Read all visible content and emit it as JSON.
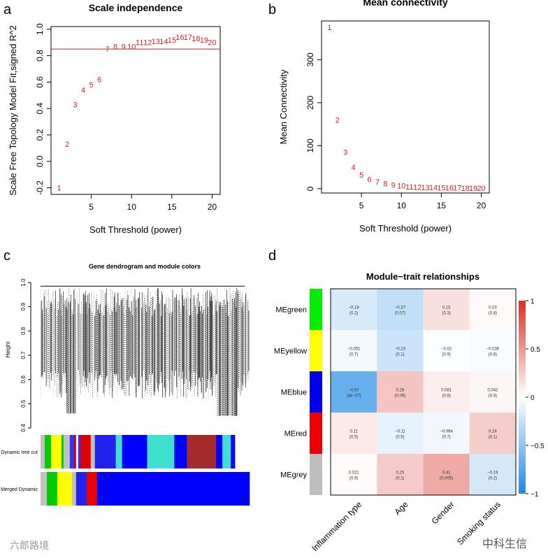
{
  "chart_data": [
    {
      "panel": "a",
      "type": "scatter",
      "title": "Scale independence",
      "xlabel": "Soft Threshold (power)",
      "ylabel": "Scale Free Topology Model Fit,signed R^2",
      "xlim": [
        0,
        21
      ],
      "ylim": [
        -0.25,
        1.02
      ],
      "xticks": [
        "5",
        "10",
        "15",
        "20"
      ],
      "yticks": [
        "-0.2",
        "0.0",
        "0.2",
        "0.4",
        "0.6",
        "0.8",
        "1.0"
      ],
      "x": [
        1,
        2,
        3,
        4,
        5,
        6,
        7,
        8,
        9,
        10,
        11,
        12,
        13,
        14,
        15,
        16,
        17,
        18,
        19,
        20
      ],
      "y": [
        -0.2,
        0.13,
        0.43,
        0.54,
        0.58,
        0.62,
        0.85,
        0.87,
        0.87,
        0.87,
        0.9,
        0.9,
        0.91,
        0.91,
        0.92,
        0.94,
        0.94,
        0.93,
        0.92,
        0.9
      ],
      "hline": 0.85,
      "color": "#cc2222"
    },
    {
      "panel": "b",
      "type": "scatter",
      "title": "Mean connectivity",
      "xlabel": "Soft Threshold (power)",
      "ylabel": "Mean Connectivity",
      "xlim": [
        0,
        21
      ],
      "ylim": [
        -10,
        390
      ],
      "xticks": [
        "5",
        "10",
        "15",
        "20"
      ],
      "yticks": [
        "0",
        "100",
        "200",
        "300"
      ],
      "x": [
        1,
        2,
        3,
        4,
        5,
        6,
        7,
        8,
        9,
        10,
        11,
        12,
        13,
        14,
        15,
        16,
        17,
        18,
        19,
        20
      ],
      "y": [
        375,
        160,
        85,
        50,
        32,
        22,
        16,
        12,
        9,
        7,
        5,
        4,
        3,
        3,
        2,
        2,
        2,
        1,
        1,
        1
      ],
      "color": "#cc2222"
    },
    {
      "panel": "c",
      "type": "dendrogram",
      "title": "Gene dendrogram and module colors",
      "ylabel": "Height",
      "yticks": [
        "0.4",
        "0.5",
        "0.6",
        "0.7",
        "0.8",
        "0.9",
        "1.0"
      ],
      "ylim": [
        0.4,
        1.0
      ],
      "rows": [
        {
          "label": "Dynamic tree cut",
          "segments": [
            [
              "#c0c0c0",
              0.02
            ],
            [
              "#00cc00",
              0.03
            ],
            [
              "#ffff00",
              0.05
            ],
            [
              "#00cc00",
              0.01
            ],
            [
              "#c0c0c0",
              0.03
            ],
            [
              "#3333ff",
              0.02
            ],
            [
              "#cc0000",
              0.01
            ],
            [
              "#ffffff",
              0.01
            ],
            [
              "#3333ff",
              0.01
            ],
            [
              "#dd0000",
              0.05
            ],
            [
              "#c0c0c0",
              0.02
            ],
            [
              "#2222ee",
              0.1
            ],
            [
              "#40e0d0",
              0.03
            ],
            [
              "#0000ff",
              0.12
            ],
            [
              "#40e0d0",
              0.13
            ],
            [
              "#0000ff",
              0.06
            ],
            [
              "#a52a2a",
              0.14
            ],
            [
              "#0000ff",
              0.03
            ],
            [
              "#40e0d0",
              0.04
            ],
            [
              "#0000ff",
              0.02
            ]
          ]
        },
        {
          "label": "Merged Dynamic",
          "segments": [
            [
              "#c0c0c0",
              0.03
            ],
            [
              "#00cc00",
              0.05
            ],
            [
              "#ffff00",
              0.07
            ],
            [
              "#c0c0c0",
              0.02
            ],
            [
              "#2222ee",
              0.05
            ],
            [
              "#ee0000",
              0.05
            ],
            [
              "#0000ff",
              0.73
            ]
          ]
        }
      ]
    },
    {
      "panel": "d",
      "type": "heatmap",
      "title": "Module−trait relationships",
      "rows": [
        "MEgreen",
        "MEyellow",
        "MEblue",
        "MEred",
        "MEgrey"
      ],
      "row_colors": [
        "#00ee00",
        "#ffff00",
        "#0000ee",
        "#ee0000",
        "#bebebe"
      ],
      "columns": [
        "Inflammation type",
        "Age",
        "Gender",
        "Smoking status"
      ],
      "values": [
        [
          -0.18,
          -0.27,
          0.15,
          0.03
        ],
        [
          -0.051,
          -0.23,
          -0.02,
          -0.036
        ],
        [
          -0.67,
          0.28,
          0.081,
          0.042
        ],
        [
          0.11,
          -0.11,
          -0.064,
          0.24
        ],
        [
          0.021,
          0.25,
          0.41,
          -0.19
        ]
      ],
      "labels": [
        [
          "−0.18",
          "−0.27",
          "0.15",
          "0.03"
        ],
        [
          "−0.051",
          "−0.23",
          "−0.02",
          "−0.036"
        ],
        [
          "−0.67",
          "0.28",
          "0.081",
          "0.042"
        ],
        [
          "0.11",
          "−0.11",
          "−0.064",
          "0.24"
        ],
        [
          "0.021",
          "0.25",
          "0.41",
          "−0.19"
        ]
      ],
      "pvalues": [
        [
          "(0.2)",
          "(0.07)",
          "(0.3)",
          "(0.8)"
        ],
        [
          "(0.7)",
          "(0.1)",
          "(0.9)",
          "(0.8)"
        ],
        [
          "(3e−07)",
          "(0.06)",
          "(0.6)",
          "(0.8)"
        ],
        [
          "(0.5)",
          "(0.5)",
          "(0.7)",
          "(0.1)"
        ],
        [
          "(0.9)",
          "(0.1)",
          "(0.005)",
          "(0.2)"
        ]
      ],
      "colorbar_ticks": [
        "1",
        "0.5",
        "0",
        "−0.5",
        "−1"
      ],
      "clim": [
        -1,
        1
      ]
    }
  ],
  "panel_letters": [
    "a",
    "b",
    "c",
    "d"
  ],
  "watermarks": {
    "left": "六郎路境",
    "right": "中科生信"
  }
}
